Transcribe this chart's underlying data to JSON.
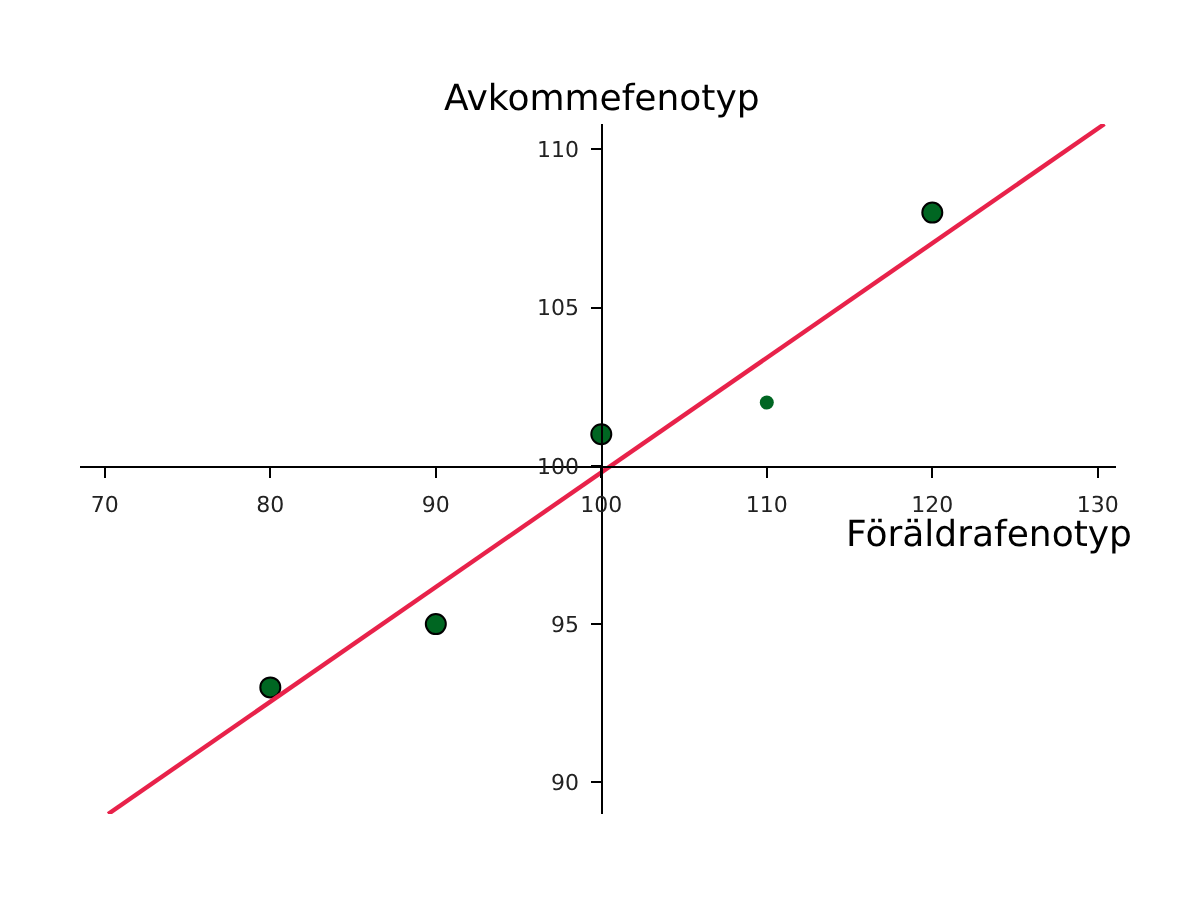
{
  "chart_data": {
    "type": "scatter",
    "xlabel": "Föräldrafenotyp",
    "ylabel": "Avkommefenotyp",
    "xlim": [
      68.5,
      131.1
    ],
    "ylim": [
      89,
      110.8
    ],
    "xticks": [
      70,
      80,
      90,
      100,
      110,
      120,
      130
    ],
    "yticks": [
      90,
      95,
      100,
      105,
      110
    ],
    "series": [
      {
        "color": "#006622",
        "marker": "circle",
        "x": [
          80,
          90,
          100,
          120
        ],
        "values": [
          93,
          95,
          101,
          108
        ]
      },
      {
        "color": "#006622",
        "marker": "circle",
        "x": [
          110
        ],
        "values": [
          102
        ]
      },
      {
        "type": "line",
        "color": "#e8224a",
        "x": [
          70.2,
          130.4
        ],
        "values": [
          89,
          110.8
        ]
      }
    ]
  }
}
